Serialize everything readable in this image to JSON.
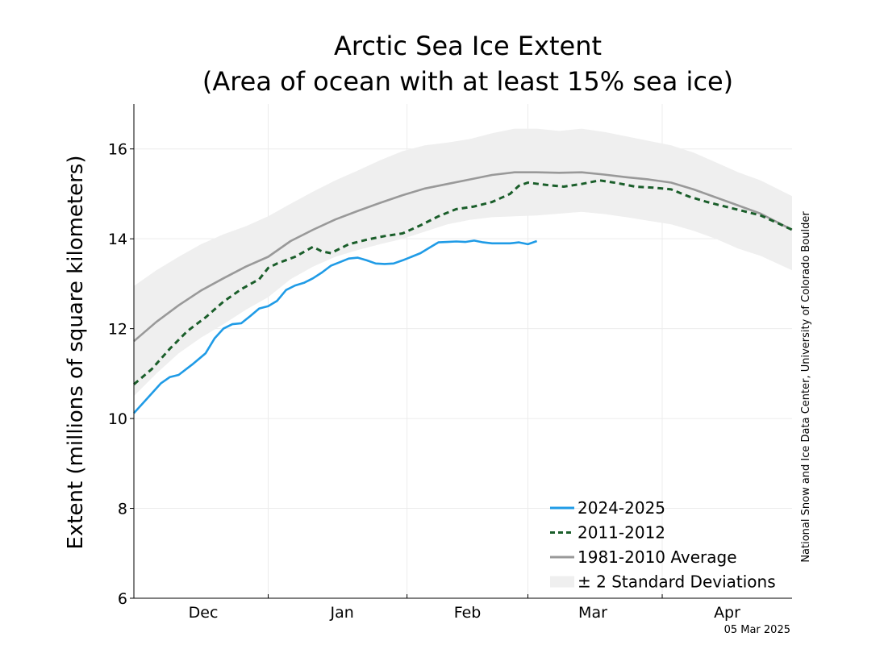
{
  "chart_data": {
    "type": "line",
    "title": "Arctic Sea Ice Extent",
    "subtitle": "(Area of ocean with at least 15% sea ice)",
    "ylabel": "Extent (millions of square kilometers)",
    "xlabel": "",
    "ylim": [
      6,
      17
    ],
    "yticks": [
      6,
      8,
      10,
      12,
      14,
      16
    ],
    "xlim": [
      0,
      147
    ],
    "xticks": [
      {
        "label": "Dec",
        "x": 15.5
      },
      {
        "label": "Jan",
        "x": 46.5
      },
      {
        "label": "Feb",
        "x": 74.5
      },
      {
        "label": "Mar",
        "x": 102.5
      },
      {
        "label": "Apr",
        "x": 132.5
      }
    ],
    "month_boundaries": [
      30,
      61,
      88,
      118
    ],
    "grid": true,
    "legend_position": "bottom-right",
    "series": [
      {
        "name": "2024-2025",
        "color": "#1f9be6",
        "style": "solid",
        "x": [
          0,
          3,
          6,
          8,
          10,
          13,
          16,
          18,
          20,
          22,
          24,
          26,
          28,
          30,
          32,
          34,
          36,
          38,
          40,
          42,
          44,
          46,
          48,
          50,
          52,
          54,
          56,
          58,
          60,
          62,
          64,
          66,
          68,
          70,
          72,
          74,
          76,
          78,
          80,
          82,
          84,
          86,
          88,
          90
        ],
        "values": [
          10.12,
          10.45,
          10.78,
          10.92,
          10.97,
          11.2,
          11.45,
          11.78,
          12.0,
          12.1,
          12.12,
          12.28,
          12.45,
          12.5,
          12.62,
          12.86,
          12.96,
          13.02,
          13.12,
          13.25,
          13.4,
          13.48,
          13.56,
          13.58,
          13.52,
          13.45,
          13.44,
          13.45,
          13.52,
          13.6,
          13.68,
          13.8,
          13.92,
          13.93,
          13.94,
          13.93,
          13.96,
          13.92,
          13.9,
          13.9,
          13.9,
          13.92,
          13.88,
          13.95
        ]
      },
      {
        "name": "2011-2012",
        "color": "#1a5e2a",
        "style": "dashed",
        "x": [
          0,
          4,
          8,
          12,
          16,
          20,
          24,
          28,
          30,
          32,
          36,
          40,
          42,
          44,
          48,
          52,
          56,
          60,
          64,
          68,
          72,
          76,
          80,
          84,
          86,
          88,
          92,
          96,
          100,
          104,
          108,
          112,
          116,
          120,
          124,
          128,
          132,
          136,
          140,
          144,
          147
        ],
        "values": [
          10.76,
          11.1,
          11.55,
          11.95,
          12.25,
          12.6,
          12.88,
          13.1,
          13.35,
          13.45,
          13.6,
          13.82,
          13.72,
          13.68,
          13.88,
          13.98,
          14.06,
          14.12,
          14.3,
          14.5,
          14.66,
          14.72,
          14.82,
          15.0,
          15.18,
          15.25,
          15.2,
          15.16,
          15.22,
          15.3,
          15.24,
          15.16,
          15.14,
          15.1,
          14.94,
          14.82,
          14.72,
          14.62,
          14.52,
          14.34,
          14.2
        ]
      },
      {
        "name": "1981-2010 Average",
        "color": "#999999",
        "style": "solid",
        "x": [
          0,
          5,
          10,
          15,
          20,
          25,
          30,
          35,
          40,
          45,
          50,
          55,
          60,
          65,
          70,
          75,
          80,
          85,
          90,
          95,
          100,
          105,
          110,
          115,
          120,
          125,
          130,
          135,
          140,
          147
        ],
        "values": [
          11.72,
          12.15,
          12.52,
          12.85,
          13.12,
          13.38,
          13.6,
          13.95,
          14.2,
          14.43,
          14.62,
          14.8,
          14.97,
          15.12,
          15.22,
          15.32,
          15.42,
          15.48,
          15.48,
          15.47,
          15.48,
          15.43,
          15.37,
          15.32,
          15.25,
          15.1,
          14.92,
          14.74,
          14.56,
          14.2
        ]
      }
    ],
    "band": {
      "name": "± 2 Standard Deviations",
      "color": "#efefef",
      "x": [
        0,
        5,
        10,
        15,
        20,
        25,
        30,
        35,
        40,
        45,
        50,
        55,
        60,
        65,
        70,
        75,
        80,
        85,
        90,
        95,
        100,
        105,
        110,
        115,
        120,
        125,
        130,
        135,
        140,
        147
      ],
      "upper": [
        12.95,
        13.3,
        13.6,
        13.88,
        14.1,
        14.28,
        14.5,
        14.78,
        15.05,
        15.3,
        15.52,
        15.75,
        15.95,
        16.08,
        16.14,
        16.22,
        16.35,
        16.45,
        16.45,
        16.4,
        16.45,
        16.38,
        16.28,
        16.18,
        16.08,
        15.92,
        15.7,
        15.48,
        15.3,
        14.95
      ],
      "lower": [
        10.5,
        11.0,
        11.45,
        11.8,
        12.1,
        12.42,
        12.7,
        13.1,
        13.38,
        13.6,
        13.75,
        13.88,
        14.0,
        14.16,
        14.32,
        14.42,
        14.48,
        14.5,
        14.52,
        14.56,
        14.6,
        14.55,
        14.48,
        14.4,
        14.32,
        14.18,
        14.0,
        13.78,
        13.62,
        13.3
      ]
    },
    "legend": [
      {
        "label": "2024-2025",
        "kind": "line",
        "color": "#1f9be6"
      },
      {
        "label": "2011-2012",
        "kind": "dashed",
        "color": "#1a5e2a"
      },
      {
        "label": "1981-2010 Average",
        "kind": "line",
        "color": "#999999"
      },
      {
        "label": "± 2 Standard Deviations",
        "kind": "band",
        "color": "#efefef"
      }
    ],
    "credit": "National Snow and Ice Data Center, University of Colorado Boulder",
    "date_stamp": "05 Mar 2025"
  }
}
